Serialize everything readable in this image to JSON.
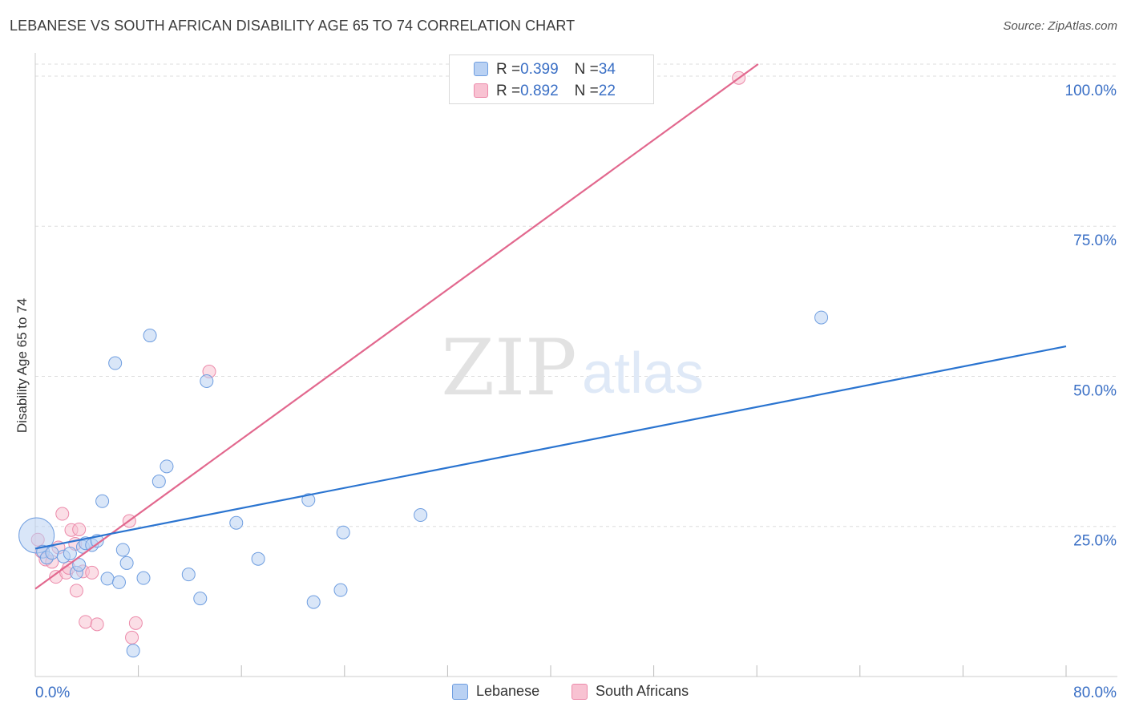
{
  "header": {
    "title": "LEBANESE VS SOUTH AFRICAN DISABILITY AGE 65 TO 74 CORRELATION CHART",
    "source": "Source: ZipAtlas.com"
  },
  "watermark": {
    "zip": "ZIP",
    "atlas": "atlas"
  },
  "legend_stats": [
    {
      "r_label": "R = ",
      "r_value": "0.399",
      "n_label": "N = ",
      "n_value": "34"
    },
    {
      "r_label": "R = ",
      "r_value": "0.892",
      "n_label": "N = ",
      "n_value": "22"
    }
  ],
  "colors": {
    "lebanese_fill": "#b9d1f3",
    "lebanese_stroke": "#6f9ee0",
    "lebanese_line": "#2a74d0",
    "sa_fill": "#f8c2d2",
    "sa_stroke": "#ec8aaa",
    "sa_line": "#e2688e",
    "tick_label": "#3a6fc5",
    "grid": "#dddddd"
  },
  "chart_data": {
    "type": "scatter",
    "title": "LEBANESE VS SOUTH AFRICAN DISABILITY AGE 65 TO 74 CORRELATION CHART",
    "xlabel": "",
    "ylabel": "Disability Age 65 to 74",
    "xlim": [
      0,
      80
    ],
    "ylim": [
      0,
      102
    ],
    "x_tick_labels": [
      "0.0%",
      "80.0%"
    ],
    "y_ticks": [
      25,
      50,
      75,
      100
    ],
    "y_tick_labels": [
      "25.0%",
      "50.0%",
      "75.0%",
      "100.0%"
    ],
    "legend_position": "bottom-center",
    "series": [
      {
        "name": "Lebanese",
        "r": 0.399,
        "n": 34,
        "trend": {
          "x": [
            0,
            80
          ],
          "y": [
            21.3,
            55.0
          ]
        },
        "points": [
          {
            "x": 0.1,
            "y": 23.5,
            "size": "large"
          },
          {
            "x": 0.6,
            "y": 20.8
          },
          {
            "x": 0.9,
            "y": 19.8
          },
          {
            "x": 1.3,
            "y": 20.6
          },
          {
            "x": 2.2,
            "y": 20.0
          },
          {
            "x": 2.7,
            "y": 20.5
          },
          {
            "x": 3.2,
            "y": 17.3
          },
          {
            "x": 3.4,
            "y": 18.6
          },
          {
            "x": 3.7,
            "y": 21.6
          },
          {
            "x": 3.9,
            "y": 22.2
          },
          {
            "x": 4.4,
            "y": 21.9
          },
          {
            "x": 4.8,
            "y": 22.6
          },
          {
            "x": 5.2,
            "y": 29.2
          },
          {
            "x": 5.6,
            "y": 16.3
          },
          {
            "x": 6.2,
            "y": 52.2
          },
          {
            "x": 6.5,
            "y": 15.7
          },
          {
            "x": 6.8,
            "y": 21.1
          },
          {
            "x": 7.1,
            "y": 18.9
          },
          {
            "x": 7.6,
            "y": 4.3
          },
          {
            "x": 8.4,
            "y": 16.4
          },
          {
            "x": 8.9,
            "y": 56.8
          },
          {
            "x": 9.6,
            "y": 32.5
          },
          {
            "x": 10.2,
            "y": 35.0
          },
          {
            "x": 11.9,
            "y": 17.0
          },
          {
            "x": 12.8,
            "y": 13.0
          },
          {
            "x": 13.3,
            "y": 49.2
          },
          {
            "x": 15.6,
            "y": 25.6
          },
          {
            "x": 17.3,
            "y": 19.6
          },
          {
            "x": 21.2,
            "y": 29.4
          },
          {
            "x": 21.6,
            "y": 12.4
          },
          {
            "x": 23.7,
            "y": 14.4
          },
          {
            "x": 23.9,
            "y": 24.0
          },
          {
            "x": 29.9,
            "y": 26.9
          },
          {
            "x": 61.0,
            "y": 59.8
          }
        ]
      },
      {
        "name": "South Africans",
        "r": 0.892,
        "n": 22,
        "trend": {
          "x": [
            0,
            56.1
          ],
          "y": [
            14.6,
            102.0
          ]
        },
        "points": [
          {
            "x": 0.2,
            "y": 22.8
          },
          {
            "x": 0.5,
            "y": 20.8
          },
          {
            "x": 0.8,
            "y": 19.5
          },
          {
            "x": 1.3,
            "y": 19.1
          },
          {
            "x": 1.6,
            "y": 16.6
          },
          {
            "x": 1.8,
            "y": 21.5
          },
          {
            "x": 2.1,
            "y": 27.1
          },
          {
            "x": 2.4,
            "y": 17.3
          },
          {
            "x": 2.6,
            "y": 18.1
          },
          {
            "x": 2.8,
            "y": 24.4
          },
          {
            "x": 3.1,
            "y": 22.1
          },
          {
            "x": 3.2,
            "y": 14.3
          },
          {
            "x": 3.4,
            "y": 24.5
          },
          {
            "x": 3.7,
            "y": 17.5
          },
          {
            "x": 3.9,
            "y": 9.1
          },
          {
            "x": 4.4,
            "y": 17.3
          },
          {
            "x": 4.8,
            "y": 8.7
          },
          {
            "x": 7.3,
            "y": 25.9
          },
          {
            "x": 7.5,
            "y": 6.5
          },
          {
            "x": 7.8,
            "y": 8.9
          },
          {
            "x": 13.5,
            "y": 50.8
          },
          {
            "x": 54.6,
            "y": 99.7
          }
        ]
      }
    ]
  }
}
